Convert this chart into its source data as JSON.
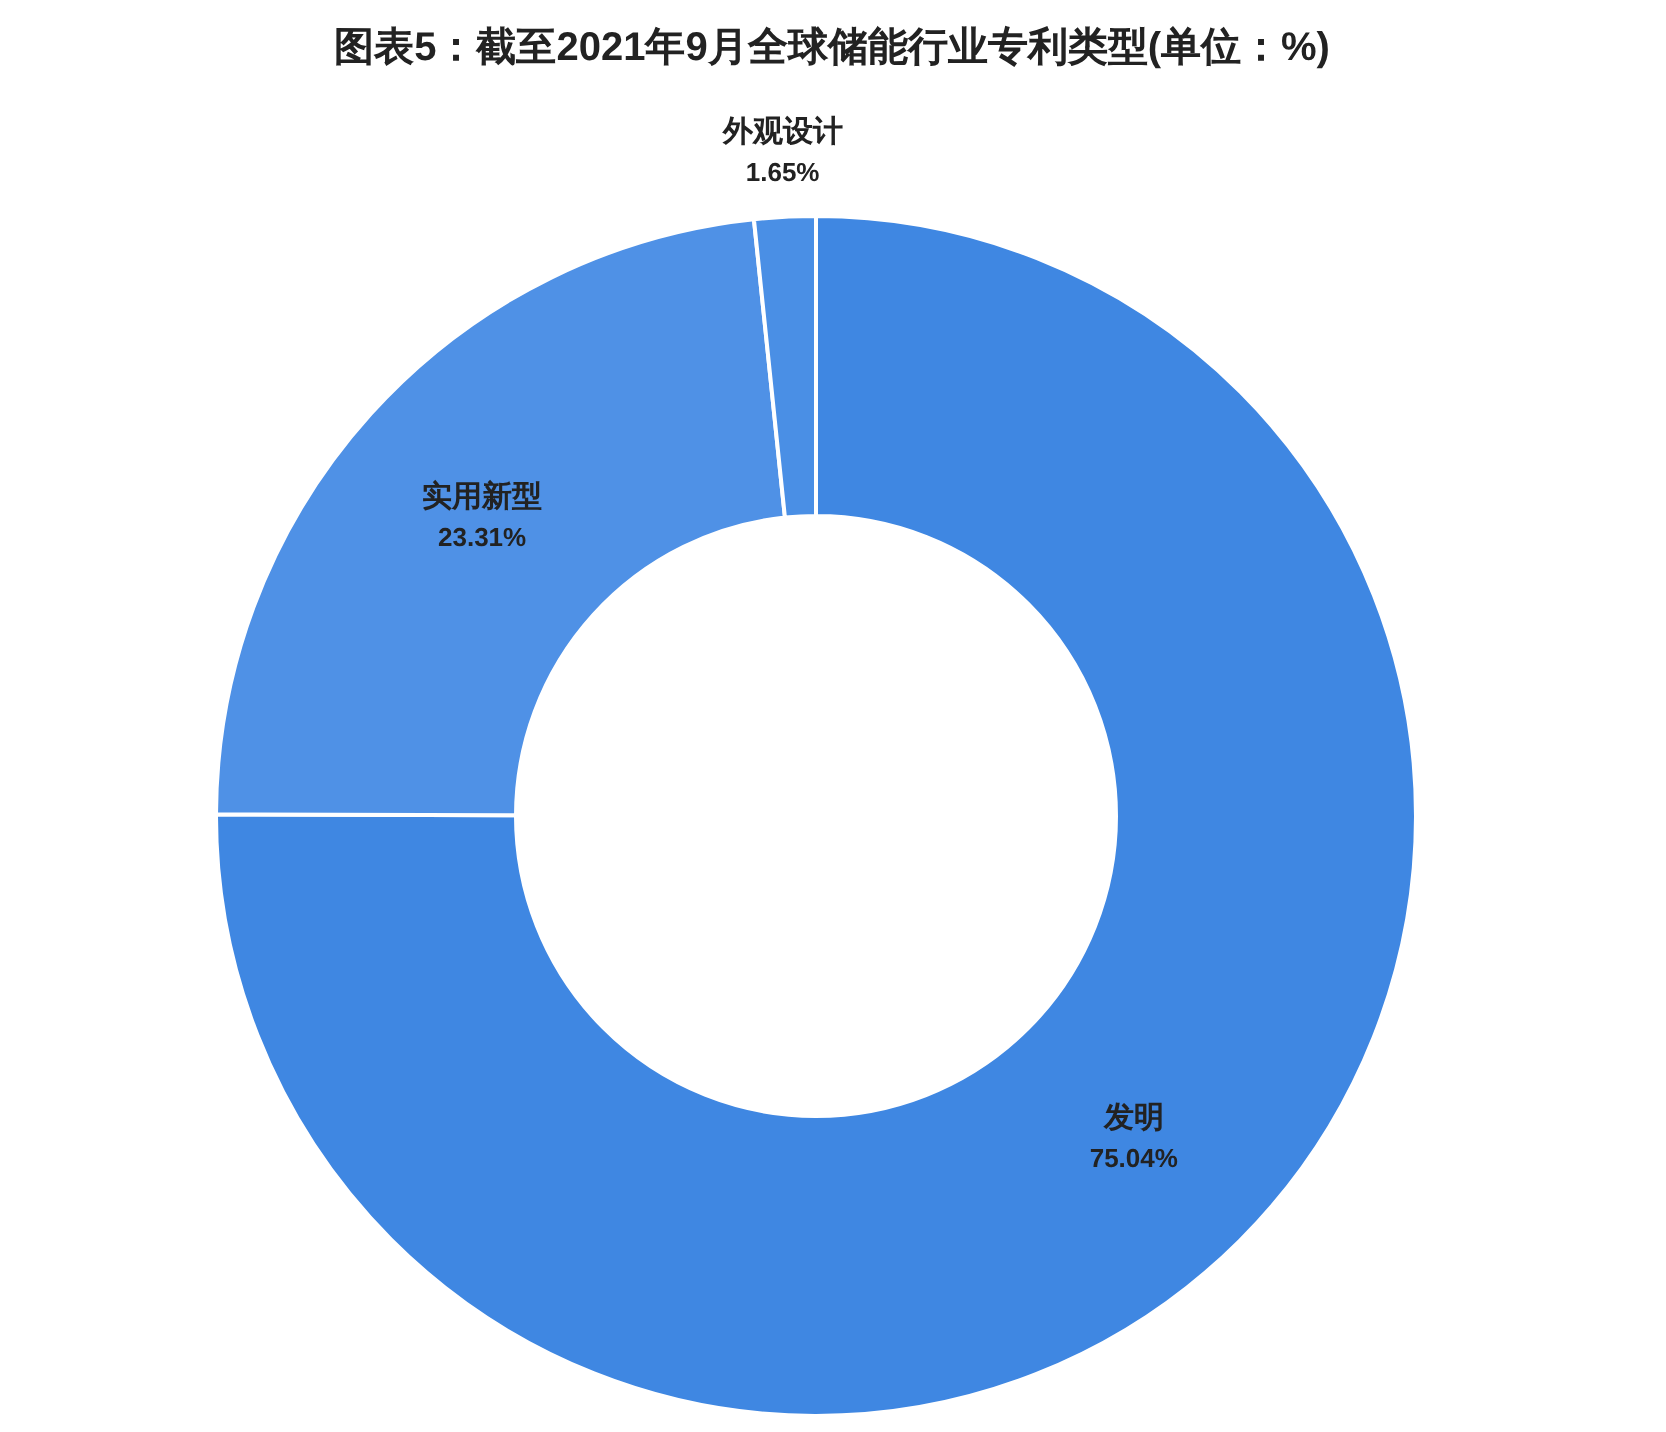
{
  "chart_data": {
    "type": "donut",
    "title": "图表5：截至2021年9月全球储能行业专利类型(单位：%)",
    "categories": [
      "发明",
      "实用新型",
      "外观设计"
    ],
    "values": [
      75.04,
      23.31,
      1.65
    ],
    "value_labels": [
      "75.04%",
      "23.31%",
      "1.65%"
    ],
    "colors": [
      "#3f87e2",
      "#4f91e6",
      "#4a8fe5"
    ],
    "legend": false
  }
}
